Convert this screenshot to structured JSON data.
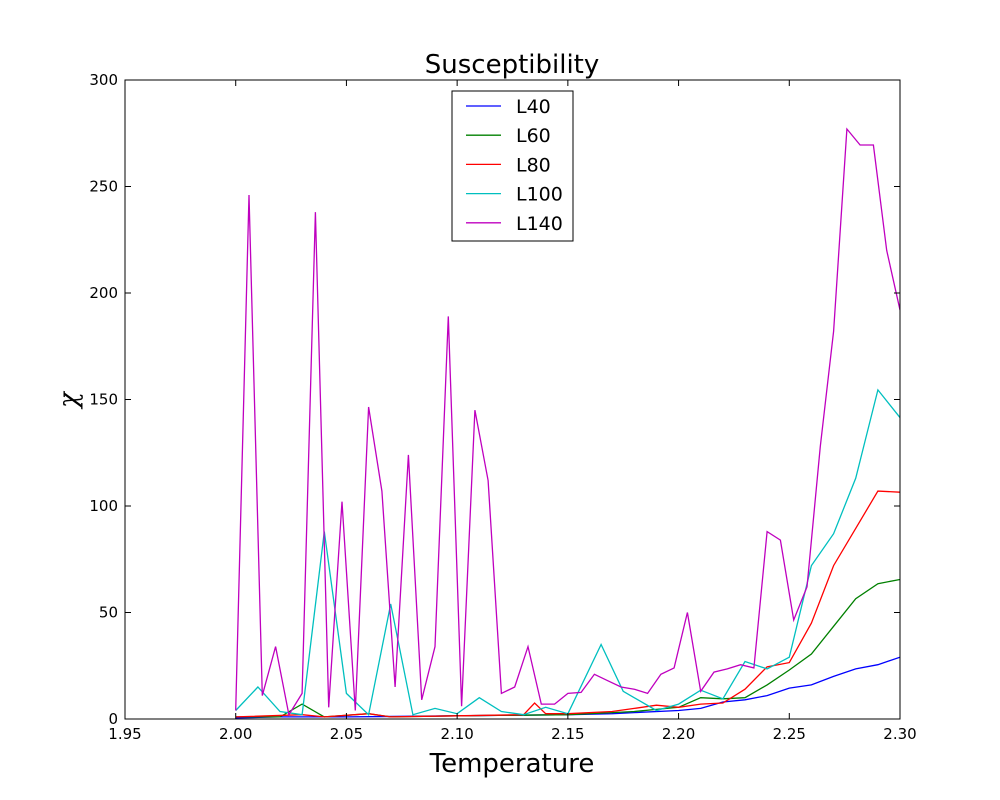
{
  "chart_data": {
    "type": "line",
    "title": "Susceptibility",
    "xlabel": "Temperature",
    "ylabel": "χ",
    "xlim": [
      1.95,
      2.3
    ],
    "ylim": [
      0,
      300
    ],
    "xticks": [
      "1.95",
      "2.00",
      "2.05",
      "2.10",
      "2.15",
      "2.20",
      "2.25",
      "2.30"
    ],
    "xtick_values": [
      1.95,
      2.0,
      2.05,
      2.1,
      2.15,
      2.2,
      2.25,
      2.3
    ],
    "yticks": [
      "0",
      "50",
      "100",
      "150",
      "200",
      "250",
      "300"
    ],
    "ytick_values": [
      0,
      50,
      100,
      150,
      200,
      250,
      300
    ],
    "grid": false,
    "legend_position": "top-center",
    "series": [
      {
        "name": "L40",
        "color": "#0000ff",
        "points": [
          [
            2.0,
            0.5
          ],
          [
            2.02,
            1.0
          ],
          [
            2.05,
            1.0
          ],
          [
            2.1,
            1.5
          ],
          [
            2.15,
            2.0
          ],
          [
            2.17,
            2.5
          ],
          [
            2.18,
            3.0
          ],
          [
            2.2,
            4.0
          ],
          [
            2.21,
            5.0
          ],
          [
            2.22,
            8.0
          ],
          [
            2.23,
            9.0
          ],
          [
            2.24,
            11.0
          ],
          [
            2.25,
            14.5
          ],
          [
            2.26,
            16.0
          ],
          [
            2.27,
            20.0
          ],
          [
            2.28,
            23.5
          ],
          [
            2.29,
            25.5
          ],
          [
            2.3,
            29.0
          ]
        ]
      },
      {
        "name": "L60",
        "color": "#008000",
        "points": [
          [
            2.0,
            1.0
          ],
          [
            2.02,
            1.0
          ],
          [
            2.03,
            7.0
          ],
          [
            2.04,
            1.0
          ],
          [
            2.06,
            2.5
          ],
          [
            2.07,
            1.0
          ],
          [
            2.1,
            1.5
          ],
          [
            2.15,
            2.0
          ],
          [
            2.17,
            3.0
          ],
          [
            2.18,
            3.5
          ],
          [
            2.19,
            4.5
          ],
          [
            2.2,
            5.5
          ],
          [
            2.21,
            10.0
          ],
          [
            2.22,
            9.5
          ],
          [
            2.23,
            10.0
          ],
          [
            2.24,
            16.0
          ],
          [
            2.25,
            23.0
          ],
          [
            2.26,
            30.5
          ],
          [
            2.27,
            43.5
          ],
          [
            2.28,
            56.5
          ],
          [
            2.29,
            63.5
          ],
          [
            2.3,
            65.5
          ]
        ]
      },
      {
        "name": "L80",
        "color": "#ff0000",
        "points": [
          [
            2.0,
            1.0
          ],
          [
            2.03,
            2.0
          ],
          [
            2.04,
            1.0
          ],
          [
            2.06,
            2.5
          ],
          [
            2.07,
            1.0
          ],
          [
            2.1,
            1.5
          ],
          [
            2.13,
            2.0
          ],
          [
            2.135,
            7.5
          ],
          [
            2.14,
            2.5
          ],
          [
            2.15,
            2.5
          ],
          [
            2.17,
            3.5
          ],
          [
            2.18,
            5.0
          ],
          [
            2.19,
            6.5
          ],
          [
            2.2,
            5.5
          ],
          [
            2.21,
            7.0
          ],
          [
            2.22,
            7.5
          ],
          [
            2.23,
            14.0
          ],
          [
            2.24,
            24.5
          ],
          [
            2.25,
            26.5
          ],
          [
            2.26,
            45.0
          ],
          [
            2.27,
            72.0
          ],
          [
            2.28,
            89.5
          ],
          [
            2.29,
            107.0
          ],
          [
            2.3,
            106.5
          ]
        ]
      },
      {
        "name": "L100",
        "color": "#00bfbf",
        "points": [
          [
            2.0,
            4.0
          ],
          [
            2.01,
            15.0
          ],
          [
            2.02,
            3.5
          ],
          [
            2.03,
            2.0
          ],
          [
            2.04,
            88.0
          ],
          [
            2.05,
            12.0
          ],
          [
            2.06,
            2.0
          ],
          [
            2.07,
            54.0
          ],
          [
            2.08,
            2.0
          ],
          [
            2.09,
            5.0
          ],
          [
            2.1,
            2.5
          ],
          [
            2.11,
            10.0
          ],
          [
            2.12,
            3.5
          ],
          [
            2.13,
            2.0
          ],
          [
            2.14,
            5.5
          ],
          [
            2.15,
            2.5
          ],
          [
            2.165,
            35.0
          ],
          [
            2.175,
            13.0
          ],
          [
            2.19,
            4.0
          ],
          [
            2.2,
            7.0
          ],
          [
            2.21,
            13.5
          ],
          [
            2.22,
            9.5
          ],
          [
            2.23,
            27.0
          ],
          [
            2.24,
            23.5
          ],
          [
            2.25,
            29.0
          ],
          [
            2.26,
            72.0
          ],
          [
            2.27,
            87.0
          ],
          [
            2.28,
            113.0
          ],
          [
            2.29,
            154.5
          ],
          [
            2.3,
            141.5
          ]
        ]
      },
      {
        "name": "L140",
        "color": "#bf00bf",
        "points": [
          [
            2.0,
            4.0
          ],
          [
            2.006,
            246.0
          ],
          [
            2.012,
            11.0
          ],
          [
            2.018,
            34.0
          ],
          [
            2.024,
            2.0
          ],
          [
            2.03,
            12.0
          ],
          [
            2.036,
            238.0
          ],
          [
            2.042,
            5.5
          ],
          [
            2.048,
            102.0
          ],
          [
            2.054,
            4.0
          ],
          [
            2.06,
            146.5
          ],
          [
            2.066,
            107.0
          ],
          [
            2.072,
            15.0
          ],
          [
            2.078,
            124.0
          ],
          [
            2.084,
            9.0
          ],
          [
            2.09,
            34.0
          ],
          [
            2.096,
            189.0
          ],
          [
            2.102,
            6.0
          ],
          [
            2.108,
            145.0
          ],
          [
            2.114,
            112.0
          ],
          [
            2.12,
            12.0
          ],
          [
            2.126,
            15.0
          ],
          [
            2.132,
            34.0
          ],
          [
            2.138,
            7.0
          ],
          [
            2.144,
            7.0
          ],
          [
            2.15,
            12.0
          ],
          [
            2.156,
            12.5
          ],
          [
            2.162,
            21.0
          ],
          [
            2.168,
            18.0
          ],
          [
            2.174,
            15.0
          ],
          [
            2.18,
            14.0
          ],
          [
            2.186,
            12.0
          ],
          [
            2.192,
            21.0
          ],
          [
            2.198,
            24.0
          ],
          [
            2.204,
            50.0
          ],
          [
            2.21,
            13.0
          ],
          [
            2.216,
            22.0
          ],
          [
            2.222,
            23.5
          ],
          [
            2.228,
            25.5
          ],
          [
            2.234,
            24.0
          ],
          [
            2.24,
            88.0
          ],
          [
            2.246,
            84.0
          ],
          [
            2.252,
            46.5
          ],
          [
            2.258,
            62.0
          ],
          [
            2.264,
            128.0
          ],
          [
            2.27,
            182.0
          ],
          [
            2.276,
            277.0
          ],
          [
            2.282,
            269.5
          ],
          [
            2.288,
            269.5
          ],
          [
            2.294,
            220.0
          ],
          [
            2.3,
            192.0
          ]
        ]
      }
    ]
  }
}
